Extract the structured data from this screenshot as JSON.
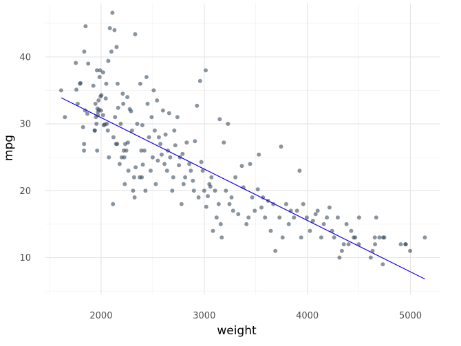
{
  "chart_data": {
    "type": "scatter",
    "title": "",
    "xlabel": "weight",
    "ylabel": "mpg",
    "xlim": [
      1460,
      5290
    ],
    "ylim": [
      4.5,
      48
    ],
    "x_ticks": [
      2000,
      3000,
      4000,
      5000
    ],
    "x_minor_ticks": [
      1500,
      2500,
      3500,
      4500
    ],
    "y_ticks": [
      10,
      20,
      30,
      40
    ],
    "y_minor_ticks": [
      5,
      15,
      25,
      35,
      45
    ],
    "grid": true,
    "legend": "none",
    "point_color": "#2c3e50",
    "point_opacity": 0.55,
    "line_color": "#1a00e6",
    "trend_line": {
      "x": [
        1613,
        5140
      ],
      "y": [
        33.9,
        6.8
      ]
    },
    "points": [
      [
        1613,
        35
      ],
      [
        1649,
        31
      ],
      [
        1755,
        39.1
      ],
      [
        1760,
        35.1
      ],
      [
        1773,
        33
      ],
      [
        1795,
        36
      ],
      [
        1800,
        36.1
      ],
      [
        1825,
        29.5
      ],
      [
        1835,
        27
      ],
      [
        1834,
        26
      ],
      [
        1845,
        32
      ],
      [
        1850,
        44.6
      ],
      [
        1836,
        40.8
      ],
      [
        1867,
        31.5
      ],
      [
        1875,
        39
      ],
      [
        1925,
        35.7
      ],
      [
        1937,
        29
      ],
      [
        1940,
        29
      ],
      [
        1945,
        33
      ],
      [
        1950,
        31
      ],
      [
        1955,
        30
      ],
      [
        1960,
        38
      ],
      [
        1962,
        26
      ],
      [
        1965,
        32.3
      ],
      [
        1968,
        31.3
      ],
      [
        1970,
        31.8
      ],
      [
        1975,
        33.5
      ],
      [
        1980,
        32.1
      ],
      [
        1985,
        37
      ],
      [
        1990,
        38
      ],
      [
        1995,
        34.1
      ],
      [
        2000,
        32
      ],
      [
        2003,
        34.3
      ],
      [
        2019,
        31.3
      ],
      [
        2020,
        37.7
      ],
      [
        2025,
        29.8
      ],
      [
        2035,
        29.9
      ],
      [
        2045,
        33.8
      ],
      [
        2050,
        36
      ],
      [
        2055,
        30
      ],
      [
        2065,
        29
      ],
      [
        2070,
        39.4
      ],
      [
        2075,
        25
      ],
      [
        2085,
        44.3
      ],
      [
        2100,
        40.8
      ],
      [
        2110,
        46.6
      ],
      [
        2115,
        18
      ],
      [
        2120,
        28
      ],
      [
        2130,
        44
      ],
      [
        2135,
        31
      ],
      [
        2145,
        27
      ],
      [
        2150,
        41.5
      ],
      [
        2155,
        27
      ],
      [
        2160,
        36
      ],
      [
        2165,
        32.4
      ],
      [
        2180,
        24
      ],
      [
        2190,
        30
      ],
      [
        2200,
        25
      ],
      [
        2210,
        34.5
      ],
      [
        2215,
        33
      ],
      [
        2220,
        26
      ],
      [
        2225,
        25
      ],
      [
        2230,
        21
      ],
      [
        2234,
        27
      ],
      [
        2245,
        26
      ],
      [
        2255,
        34
      ],
      [
        2260,
        27.2
      ],
      [
        2265,
        23
      ],
      [
        2278,
        32.2
      ],
      [
        2290,
        31.9
      ],
      [
        2300,
        29
      ],
      [
        2310,
        20
      ],
      [
        2320,
        22
      ],
      [
        2325,
        19
      ],
      [
        2330,
        43.4
      ],
      [
        2335,
        23.5
      ],
      [
        2350,
        30
      ],
      [
        2375,
        22
      ],
      [
        2380,
        36
      ],
      [
        2390,
        26
      ],
      [
        2395,
        22
      ],
      [
        2400,
        29.8
      ],
      [
        2405,
        23.9
      ],
      [
        2420,
        26
      ],
      [
        2430,
        20
      ],
      [
        2440,
        37
      ],
      [
        2451,
        33
      ],
      [
        2465,
        28
      ],
      [
        2480,
        23
      ],
      [
        2490,
        31
      ],
      [
        2500,
        25
      ],
      [
        2510,
        35
      ],
      [
        2520,
        29
      ],
      [
        2530,
        21
      ],
      [
        2542,
        33.5
      ],
      [
        2550,
        24.5
      ],
      [
        2560,
        28
      ],
      [
        2575,
        27
      ],
      [
        2587,
        25.4
      ],
      [
        2600,
        32
      ],
      [
        2615,
        24
      ],
      [
        2625,
        28.4
      ],
      [
        2640,
        23
      ],
      [
        2648,
        26
      ],
      [
        2660,
        31.6
      ],
      [
        2670,
        25
      ],
      [
        2690,
        20
      ],
      [
        2700,
        22
      ],
      [
        2710,
        29
      ],
      [
        2720,
        26.8
      ],
      [
        2740,
        31
      ],
      [
        2755,
        23.8
      ],
      [
        2765,
        25
      ],
      [
        2780,
        18
      ],
      [
        2790,
        25.5
      ],
      [
        2800,
        21
      ],
      [
        2815,
        22
      ],
      [
        2830,
        27.2
      ],
      [
        2855,
        24
      ],
      [
        2870,
        23
      ],
      [
        2890,
        21.5
      ],
      [
        2900,
        20
      ],
      [
        2910,
        27.4
      ],
      [
        2930,
        32.7
      ],
      [
        2945,
        19
      ],
      [
        2960,
        36.4
      ],
      [
        2972,
        24.3
      ],
      [
        2985,
        23
      ],
      [
        3000,
        20
      ],
      [
        3015,
        38
      ],
      [
        3020,
        17.6
      ],
      [
        3035,
        19.2
      ],
      [
        3050,
        21
      ],
      [
        3060,
        20.6
      ],
      [
        3070,
        22
      ],
      [
        3085,
        14
      ],
      [
        3105,
        20
      ],
      [
        3120,
        16
      ],
      [
        3140,
        18
      ],
      [
        3150,
        30.7
      ],
      [
        3160,
        15
      ],
      [
        3170,
        13
      ],
      [
        3190,
        27.2
      ],
      [
        3210,
        20
      ],
      [
        3230,
        30
      ],
      [
        3245,
        18
      ],
      [
        3265,
        19
      ],
      [
        3280,
        17
      ],
      [
        3302,
        22
      ],
      [
        3330,
        16.5
      ],
      [
        3365,
        23.7
      ],
      [
        3380,
        20.5
      ],
      [
        3410,
        15
      ],
      [
        3430,
        16
      ],
      [
        3445,
        24
      ],
      [
        3465,
        19
      ],
      [
        3490,
        17
      ],
      [
        3520,
        20.2
      ],
      [
        3530,
        25.4
      ],
      [
        3555,
        17.5
      ],
      [
        3570,
        19
      ],
      [
        3590,
        16
      ],
      [
        3620,
        18.5
      ],
      [
        3645,
        14
      ],
      [
        3670,
        18
      ],
      [
        3690,
        11
      ],
      [
        3730,
        16
      ],
      [
        3745,
        26.6
      ],
      [
        3760,
        13
      ],
      [
        3795,
        18
      ],
      [
        3820,
        15
      ],
      [
        3840,
        17
      ],
      [
        3870,
        16
      ],
      [
        3900,
        17
      ],
      [
        3925,
        23
      ],
      [
        3940,
        13
      ],
      [
        3960,
        18
      ],
      [
        3995,
        16
      ],
      [
        4025,
        14
      ],
      [
        4055,
        15.5
      ],
      [
        4080,
        16.5
      ],
      [
        4100,
        17
      ],
      [
        4135,
        13
      ],
      [
        4160,
        15
      ],
      [
        4190,
        16
      ],
      [
        4215,
        17.5
      ],
      [
        4240,
        14
      ],
      [
        4260,
        13
      ],
      [
        4295,
        16
      ],
      [
        4312,
        10
      ],
      [
        4335,
        11
      ],
      [
        4354,
        12
      ],
      [
        4380,
        15
      ],
      [
        4400,
        12
      ],
      [
        4425,
        14
      ],
      [
        4450,
        13
      ],
      [
        4464,
        13
      ],
      [
        4499,
        12
      ],
      [
        4502,
        16
      ],
      [
        4615,
        10
      ],
      [
        4633,
        11
      ],
      [
        4654,
        13
      ],
      [
        4657,
        12
      ],
      [
        4668,
        16
      ],
      [
        4699,
        13
      ],
      [
        4732,
        9
      ],
      [
        4735,
        13
      ],
      [
        4746,
        13
      ],
      [
        4906,
        12
      ],
      [
        4951,
        12
      ],
      [
        4955,
        12
      ],
      [
        4997,
        11
      ],
      [
        5140,
        13
      ]
    ]
  }
}
